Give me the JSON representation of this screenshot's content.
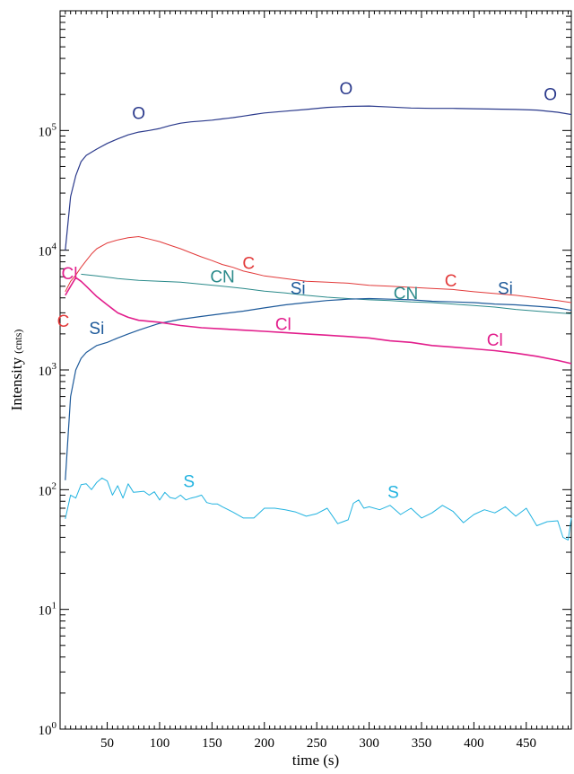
{
  "chart_data": {
    "type": "line",
    "title": "",
    "xlabel": "time (s)",
    "ylabel_main": "Intensity",
    "ylabel_unit": "(cnts)",
    "xlim": [
      5,
      493
    ],
    "yscale": "log",
    "ylim": [
      1,
      1000000
    ],
    "x_ticks": [
      50,
      100,
      150,
      200,
      250,
      300,
      350,
      400,
      450
    ],
    "y_ticks": [
      {
        "value": 1,
        "base": "10",
        "exp": "0"
      },
      {
        "value": 10,
        "base": "10",
        "exp": "1"
      },
      {
        "value": 100,
        "base": "10",
        "exp": "2"
      },
      {
        "value": 1000,
        "base": "10",
        "exp": "3"
      },
      {
        "value": 10000,
        "base": "10",
        "exp": "4"
      },
      {
        "value": 100000,
        "base": "10",
        "exp": "5"
      }
    ],
    "grid": false,
    "series": [
      {
        "name": "O",
        "color": "#2b3a8c",
        "width": 1.2,
        "x": [
          10,
          15,
          20,
          25,
          30,
          40,
          50,
          60,
          70,
          80,
          90,
          100,
          110,
          120,
          130,
          140,
          150,
          160,
          170,
          180,
          190,
          200,
          220,
          240,
          260,
          280,
          300,
          320,
          340,
          360,
          380,
          400,
          420,
          440,
          460,
          480,
          493
        ],
        "y": [
          10000,
          28000,
          42000,
          55000,
          62000,
          70000,
          78000,
          85000,
          92000,
          97000,
          100000,
          104000,
          110000,
          115000,
          118000,
          120000,
          122000,
          125000,
          128000,
          132000,
          136000,
          140000,
          145000,
          150000,
          156000,
          159000,
          160000,
          157000,
          154000,
          153000,
          153000,
          152000,
          151000,
          150000,
          148000,
          142000,
          136000
        ],
        "labels": [
          {
            "text": "O",
            "x": 80,
            "y": 125000
          },
          {
            "text": "O",
            "x": 278,
            "y": 200000
          },
          {
            "text": "O",
            "x": 473,
            "y": 180000
          }
        ]
      },
      {
        "name": "C",
        "color": "#e23a3a",
        "width": 1.0,
        "x": [
          10,
          15,
          20,
          25,
          30,
          35,
          40,
          50,
          60,
          70,
          80,
          90,
          100,
          110,
          120,
          130,
          140,
          150,
          160,
          170,
          180,
          190,
          200,
          220,
          240,
          260,
          280,
          300,
          320,
          340,
          360,
          380,
          400,
          420,
          440,
          460,
          480,
          493
        ],
        "y": [
          4500,
          5500,
          6200,
          7200,
          8200,
          9300,
          10300,
          11500,
          12200,
          12700,
          13000,
          12400,
          11800,
          11000,
          10300,
          9500,
          8800,
          8200,
          7600,
          7200,
          6700,
          6400,
          6100,
          5800,
          5500,
          5400,
          5300,
          5100,
          5000,
          4900,
          4800,
          4700,
          4500,
          4350,
          4200,
          4000,
          3800,
          3650
        ],
        "labels": [
          {
            "text": "C",
            "x": 8,
            "y": 2300
          },
          {
            "text": "C",
            "x": 185,
            "y": 7000
          },
          {
            "text": "C",
            "x": 378,
            "y": 5000
          }
        ]
      },
      {
        "name": "CN",
        "color": "#2a8a8a",
        "width": 1.0,
        "x": [
          25,
          40,
          60,
          80,
          100,
          120,
          140,
          160,
          180,
          200,
          220,
          240,
          260,
          280,
          300,
          320,
          340,
          360,
          380,
          400,
          420,
          440,
          460,
          480,
          493
        ],
        "y": [
          6300,
          6100,
          5800,
          5600,
          5500,
          5400,
          5200,
          5000,
          4800,
          4550,
          4400,
          4200,
          4050,
          3950,
          3850,
          3800,
          3700,
          3650,
          3550,
          3450,
          3350,
          3200,
          3100,
          3000,
          2950
        ],
        "labels": [
          {
            "text": "CN",
            "x": 160,
            "y": 5400
          },
          {
            "text": "CN",
            "x": 335,
            "y": 3900
          }
        ]
      },
      {
        "name": "Si",
        "color": "#1e5a9a",
        "width": 1.2,
        "x": [
          10,
          15,
          20,
          25,
          30,
          40,
          50,
          60,
          70,
          80,
          90,
          100,
          120,
          140,
          160,
          180,
          200,
          220,
          240,
          260,
          280,
          300,
          320,
          340,
          360,
          380,
          400,
          420,
          440,
          460,
          480,
          493
        ],
        "y": [
          120,
          600,
          1000,
          1250,
          1400,
          1600,
          1700,
          1850,
          2000,
          2150,
          2300,
          2450,
          2650,
          2800,
          2950,
          3100,
          3300,
          3500,
          3650,
          3800,
          3900,
          3950,
          3900,
          3850,
          3750,
          3700,
          3650,
          3550,
          3500,
          3400,
          3300,
          3150
        ],
        "labels": [
          {
            "text": "Si",
            "x": 40,
            "y": 2000
          },
          {
            "text": "Si",
            "x": 232,
            "y": 4300
          },
          {
            "text": "Si",
            "x": 430,
            "y": 4300
          }
        ]
      },
      {
        "name": "Cl",
        "color": "#e21e8c",
        "width": 1.6,
        "x": [
          10,
          15,
          20,
          25,
          30,
          40,
          50,
          60,
          70,
          80,
          90,
          100,
          120,
          140,
          160,
          180,
          200,
          220,
          240,
          260,
          280,
          300,
          320,
          340,
          360,
          380,
          400,
          420,
          440,
          460,
          480,
          493
        ],
        "y": [
          4200,
          5000,
          5900,
          5500,
          5000,
          4100,
          3500,
          3000,
          2750,
          2600,
          2550,
          2500,
          2350,
          2250,
          2200,
          2150,
          2100,
          2050,
          2000,
          1950,
          1900,
          1850,
          1750,
          1700,
          1600,
          1550,
          1500,
          1450,
          1380,
          1300,
          1200,
          1130
        ],
        "labels": [
          {
            "text": "Cl",
            "x": 14,
            "y": 5700
          },
          {
            "text": "Cl",
            "x": 218,
            "y": 2150
          },
          {
            "text": "Cl",
            "x": 420,
            "y": 1600
          }
        ]
      },
      {
        "name": "S",
        "color": "#22b3e0",
        "width": 1.0,
        "x": [
          10,
          15,
          20,
          25,
          30,
          35,
          40,
          45,
          50,
          55,
          60,
          65,
          70,
          75,
          80,
          85,
          90,
          95,
          100,
          105,
          110,
          115,
          120,
          125,
          130,
          135,
          140,
          145,
          150,
          155,
          160,
          170,
          180,
          190,
          200,
          210,
          220,
          230,
          240,
          250,
          260,
          270,
          280,
          285,
          290,
          295,
          300,
          310,
          320,
          330,
          340,
          350,
          360,
          370,
          380,
          390,
          400,
          410,
          420,
          430,
          440,
          450,
          460,
          470,
          480,
          485,
          490,
          493
        ],
        "y": [
          57,
          90,
          85,
          110,
          112,
          100,
          115,
          125,
          118,
          90,
          108,
          85,
          112,
          95,
          96,
          97,
          90,
          96,
          82,
          95,
          86,
          84,
          90,
          82,
          85,
          87,
          90,
          78,
          76,
          76,
          72,
          65,
          58,
          58,
          70,
          70,
          68,
          65,
          60,
          63,
          70,
          52,
          56,
          77,
          82,
          70,
          72,
          68,
          74,
          62,
          70,
          58,
          64,
          74,
          66,
          53,
          62,
          68,
          64,
          72,
          60,
          70,
          50,
          54,
          55,
          40,
          38,
          58
        ],
        "labels": [
          {
            "text": "S",
            "x": 128,
            "y": 105
          },
          {
            "text": "S",
            "x": 323,
            "y": 85
          }
        ]
      }
    ]
  }
}
